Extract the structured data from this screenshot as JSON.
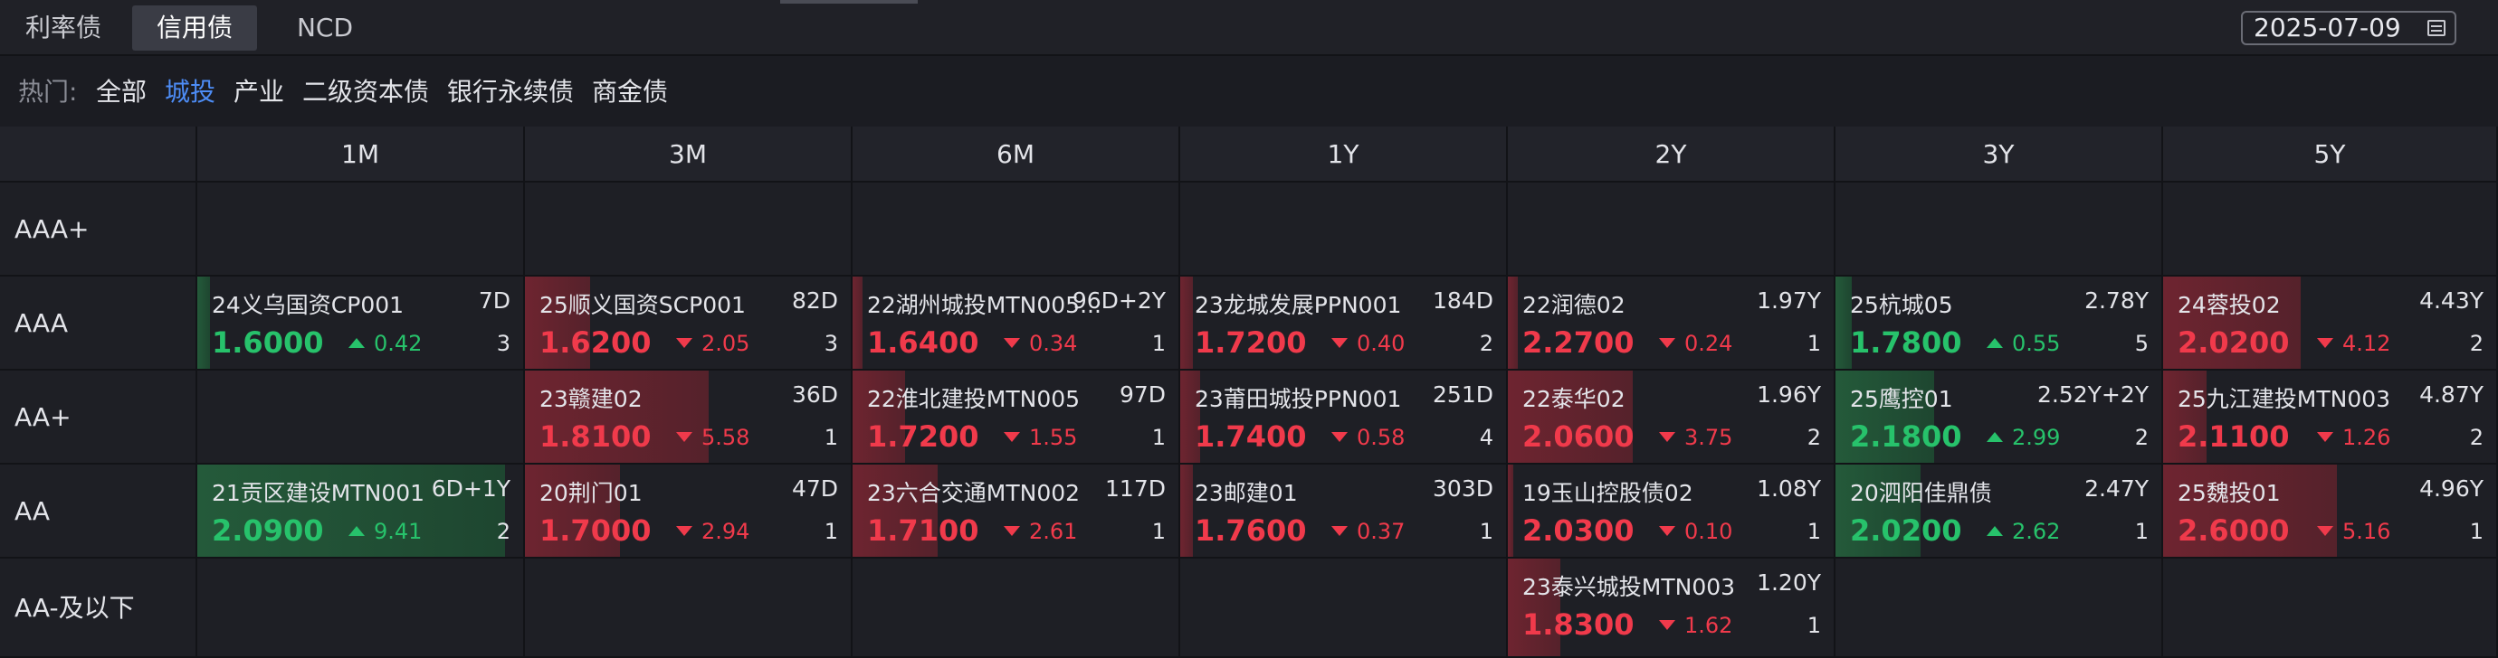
{
  "top_tabs": [
    "利率债",
    "信用债",
    "NCD"
  ],
  "active_tab": 1,
  "date": "2025-07-09",
  "hot": {
    "label": "热门:",
    "items": [
      "全部",
      "城投",
      "产业",
      "二级资本债",
      "银行永续债",
      "商金债"
    ],
    "active": 1
  },
  "columns": [
    "1M",
    "3M",
    "6M",
    "1Y",
    "2Y",
    "3Y",
    "5Y"
  ],
  "rows": [
    "AAA+",
    "AAA",
    "AA+",
    "AA",
    "AA-及以下"
  ],
  "colors": {
    "down": "#f03a4b",
    "up": "#27c26b",
    "active": "#4d8cf5"
  },
  "cells": [
    {
      "row": 1,
      "col": 0,
      "name": "24义乌国资CP001",
      "term": "7D",
      "yield": "1.6000",
      "change": "0.42",
      "dir": "up",
      "count": "3",
      "fill": 0.04
    },
    {
      "row": 1,
      "col": 1,
      "name": "25顺义国资SCP001",
      "term": "82D",
      "yield": "1.6200",
      "change": "2.05",
      "dir": "down",
      "count": "3",
      "fill": 0.2
    },
    {
      "row": 1,
      "col": 2,
      "name": "22湖州城投MTN005...",
      "term": "96D+2Y",
      "yield": "1.6400",
      "change": "0.34",
      "dir": "down",
      "count": "1",
      "fill": 0.03
    },
    {
      "row": 1,
      "col": 3,
      "name": "23龙城发展PPN001",
      "term": "184D",
      "yield": "1.7200",
      "change": "0.40",
      "dir": "down",
      "count": "2",
      "fill": 0.04
    },
    {
      "row": 1,
      "col": 4,
      "name": "22润德02",
      "term": "1.97Y",
      "yield": "2.2700",
      "change": "0.24",
      "dir": "down",
      "count": "1",
      "fill": 0.03
    },
    {
      "row": 1,
      "col": 5,
      "name": "25杭城05",
      "term": "2.78Y",
      "yield": "1.7800",
      "change": "0.55",
      "dir": "up",
      "count": "5",
      "fill": 0.05
    },
    {
      "row": 1,
      "col": 6,
      "name": "24蓉投02",
      "term": "4.43Y",
      "yield": "2.0200",
      "change": "4.12",
      "dir": "down",
      "count": "2",
      "fill": 0.41
    },
    {
      "row": 2,
      "col": 1,
      "name": "23赣建02",
      "term": "36D",
      "yield": "1.8100",
      "change": "5.58",
      "dir": "down",
      "count": "1",
      "fill": 0.56
    },
    {
      "row": 2,
      "col": 2,
      "name": "22淮北建投MTN005",
      "term": "97D",
      "yield": "1.7200",
      "change": "1.55",
      "dir": "down",
      "count": "1",
      "fill": 0.16
    },
    {
      "row": 2,
      "col": 3,
      "name": "23莆田城投PPN001",
      "term": "251D",
      "yield": "1.7400",
      "change": "0.58",
      "dir": "down",
      "count": "4",
      "fill": 0.06
    },
    {
      "row": 2,
      "col": 4,
      "name": "22泰华02",
      "term": "1.96Y",
      "yield": "2.0600",
      "change": "3.75",
      "dir": "down",
      "count": "2",
      "fill": 0.38
    },
    {
      "row": 2,
      "col": 5,
      "name": "25鹰控01",
      "term": "2.52Y+2Y",
      "yield": "2.1800",
      "change": "2.99",
      "dir": "up",
      "count": "2",
      "fill": 0.3
    },
    {
      "row": 2,
      "col": 6,
      "name": "25九江建投MTN003",
      "term": "4.87Y",
      "yield": "2.1100",
      "change": "1.26",
      "dir": "down",
      "count": "2",
      "fill": 0.13
    },
    {
      "row": 3,
      "col": 0,
      "name": "21贡区建设MTN001",
      "term": "6D+1Y",
      "yield": "2.0900",
      "change": "9.41",
      "dir": "up",
      "count": "2",
      "fill": 0.94
    },
    {
      "row": 3,
      "col": 1,
      "name": "20荆门01",
      "term": "47D",
      "yield": "1.7000",
      "change": "2.94",
      "dir": "down",
      "count": "1",
      "fill": 0.29
    },
    {
      "row": 3,
      "col": 2,
      "name": "23六合交通MTN002",
      "term": "117D",
      "yield": "1.7100",
      "change": "2.61",
      "dir": "down",
      "count": "1",
      "fill": 0.26
    },
    {
      "row": 3,
      "col": 3,
      "name": "23邮建01",
      "term": "303D",
      "yield": "1.7600",
      "change": "0.37",
      "dir": "down",
      "count": "1",
      "fill": 0.04
    },
    {
      "row": 3,
      "col": 4,
      "name": "19玉山控股债02",
      "term": "1.08Y",
      "yield": "2.0300",
      "change": "0.10",
      "dir": "down",
      "count": "1",
      "fill": 0.01
    },
    {
      "row": 3,
      "col": 5,
      "name": "20泗阳佳鼎债",
      "term": "2.47Y",
      "yield": "2.0200",
      "change": "2.62",
      "dir": "up",
      "count": "1",
      "fill": 0.26
    },
    {
      "row": 3,
      "col": 6,
      "name": "25魏投01",
      "term": "4.96Y",
      "yield": "2.6000",
      "change": "5.16",
      "dir": "down",
      "count": "1",
      "fill": 0.52
    },
    {
      "row": 4,
      "col": 4,
      "name": "23泰兴城投MTN003",
      "term": "1.20Y",
      "yield": "1.8300",
      "change": "1.62",
      "dir": "down",
      "count": "1",
      "fill": 0.16
    }
  ]
}
